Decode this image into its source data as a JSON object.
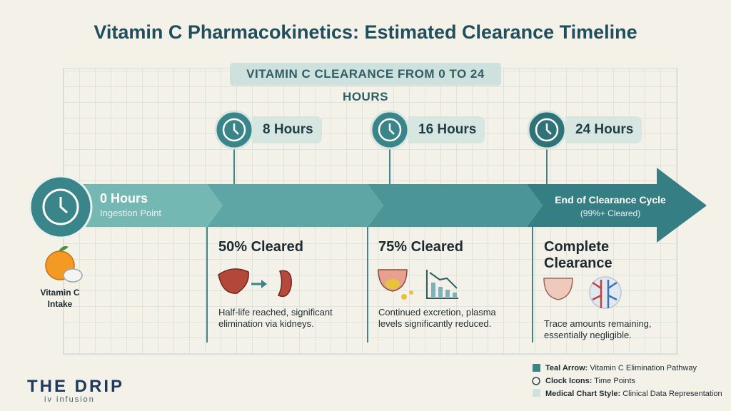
{
  "title": "Vitamin C Pharmacokinetics: Estimated Clearance Timeline",
  "subtitle": "VITAMIN C CLEARANCE FROM 0 TO 24 HOURS",
  "start": {
    "label": "0 Hours",
    "note": "Ingestion Point",
    "intake": "Vitamin C Intake"
  },
  "milestones": [
    {
      "time": "8 Hours",
      "heading": "50% Cleared",
      "text": "Half-life reached, significant elimination via kidneys."
    },
    {
      "time": "16 Hours",
      "heading": "75% Cleared",
      "text": "Continued excretion, plasma levels significantly reduced."
    },
    {
      "time": "24 Hours",
      "heading": "Complete Clearance",
      "text": "Trace amounts remaining, essentially negligible."
    }
  ],
  "end": {
    "label": "End of Clearance Cycle",
    "note": "(99%+ Cleared)"
  },
  "legend": [
    {
      "term": "Teal Arrow:",
      "desc": "Vitamin C Elimination Pathway"
    },
    {
      "term": "Clock Icons:",
      "desc": "Time Points"
    },
    {
      "term": "Medical Chart Style:",
      "desc": "Clinical Data Representation"
    }
  ],
  "brand": {
    "name": "THE DRIP",
    "tagline": "iv infusion"
  }
}
